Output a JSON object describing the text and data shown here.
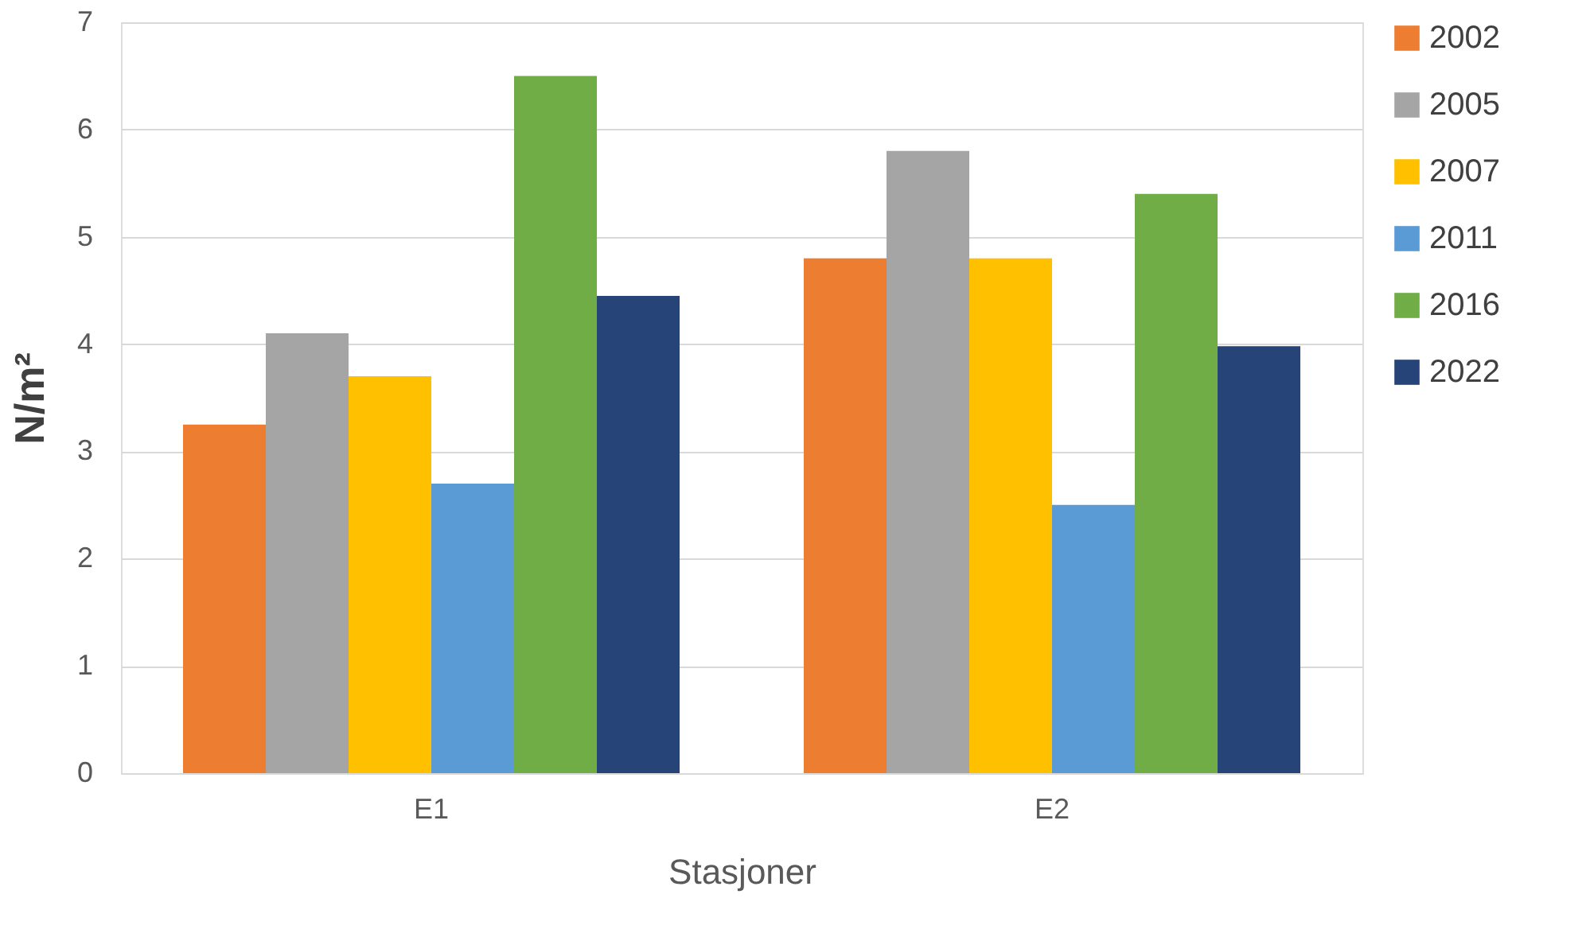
{
  "chart_data": {
    "type": "bar",
    "xlabel": "Stasjoner",
    "ylabel": "N/m²",
    "categories": [
      "E1",
      "E2"
    ],
    "series": [
      {
        "name": "2002",
        "color": "#ed7d31",
        "values": [
          3.25,
          4.8
        ]
      },
      {
        "name": "2005",
        "color": "#a5a5a5",
        "values": [
          4.1,
          5.8
        ]
      },
      {
        "name": "2007",
        "color": "#ffc000",
        "values": [
          3.7,
          4.8
        ]
      },
      {
        "name": "2011",
        "color": "#5b9bd5",
        "values": [
          2.7,
          2.5
        ]
      },
      {
        "name": "2016",
        "color": "#70ad47",
        "values": [
          6.5,
          5.4
        ]
      },
      {
        "name": "2022",
        "color": "#264478",
        "values": [
          4.45,
          3.98
        ]
      }
    ],
    "ylim": [
      0,
      7
    ],
    "yticks": [
      0,
      1,
      2,
      3,
      4,
      5,
      6,
      7
    ],
    "grid": "y",
    "legend": "right"
  }
}
